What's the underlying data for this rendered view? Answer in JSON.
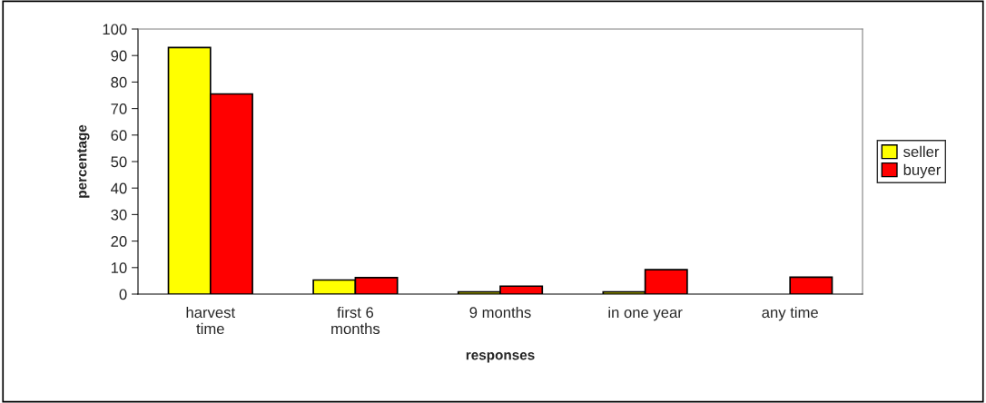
{
  "chart_data": {
    "type": "bar",
    "xlabel": "responses",
    "ylabel": "percentage",
    "categories": [
      "harvest time",
      "first 6 months",
      "9 months",
      "in one year",
      "any time"
    ],
    "series": [
      {
        "name": "seller",
        "color": "#ffff00",
        "values": [
          93,
          5.3,
          0.8,
          0.8,
          null
        ]
      },
      {
        "name": "buyer",
        "color": "#ff0000",
        "values": [
          75.5,
          6.2,
          3.0,
          9.2,
          6.4
        ]
      }
    ],
    "ylim": [
      0,
      100
    ],
    "yticks": [
      0,
      10,
      20,
      30,
      40,
      50,
      60,
      70,
      80,
      90,
      100
    ],
    "grid": false,
    "legend": "right"
  }
}
